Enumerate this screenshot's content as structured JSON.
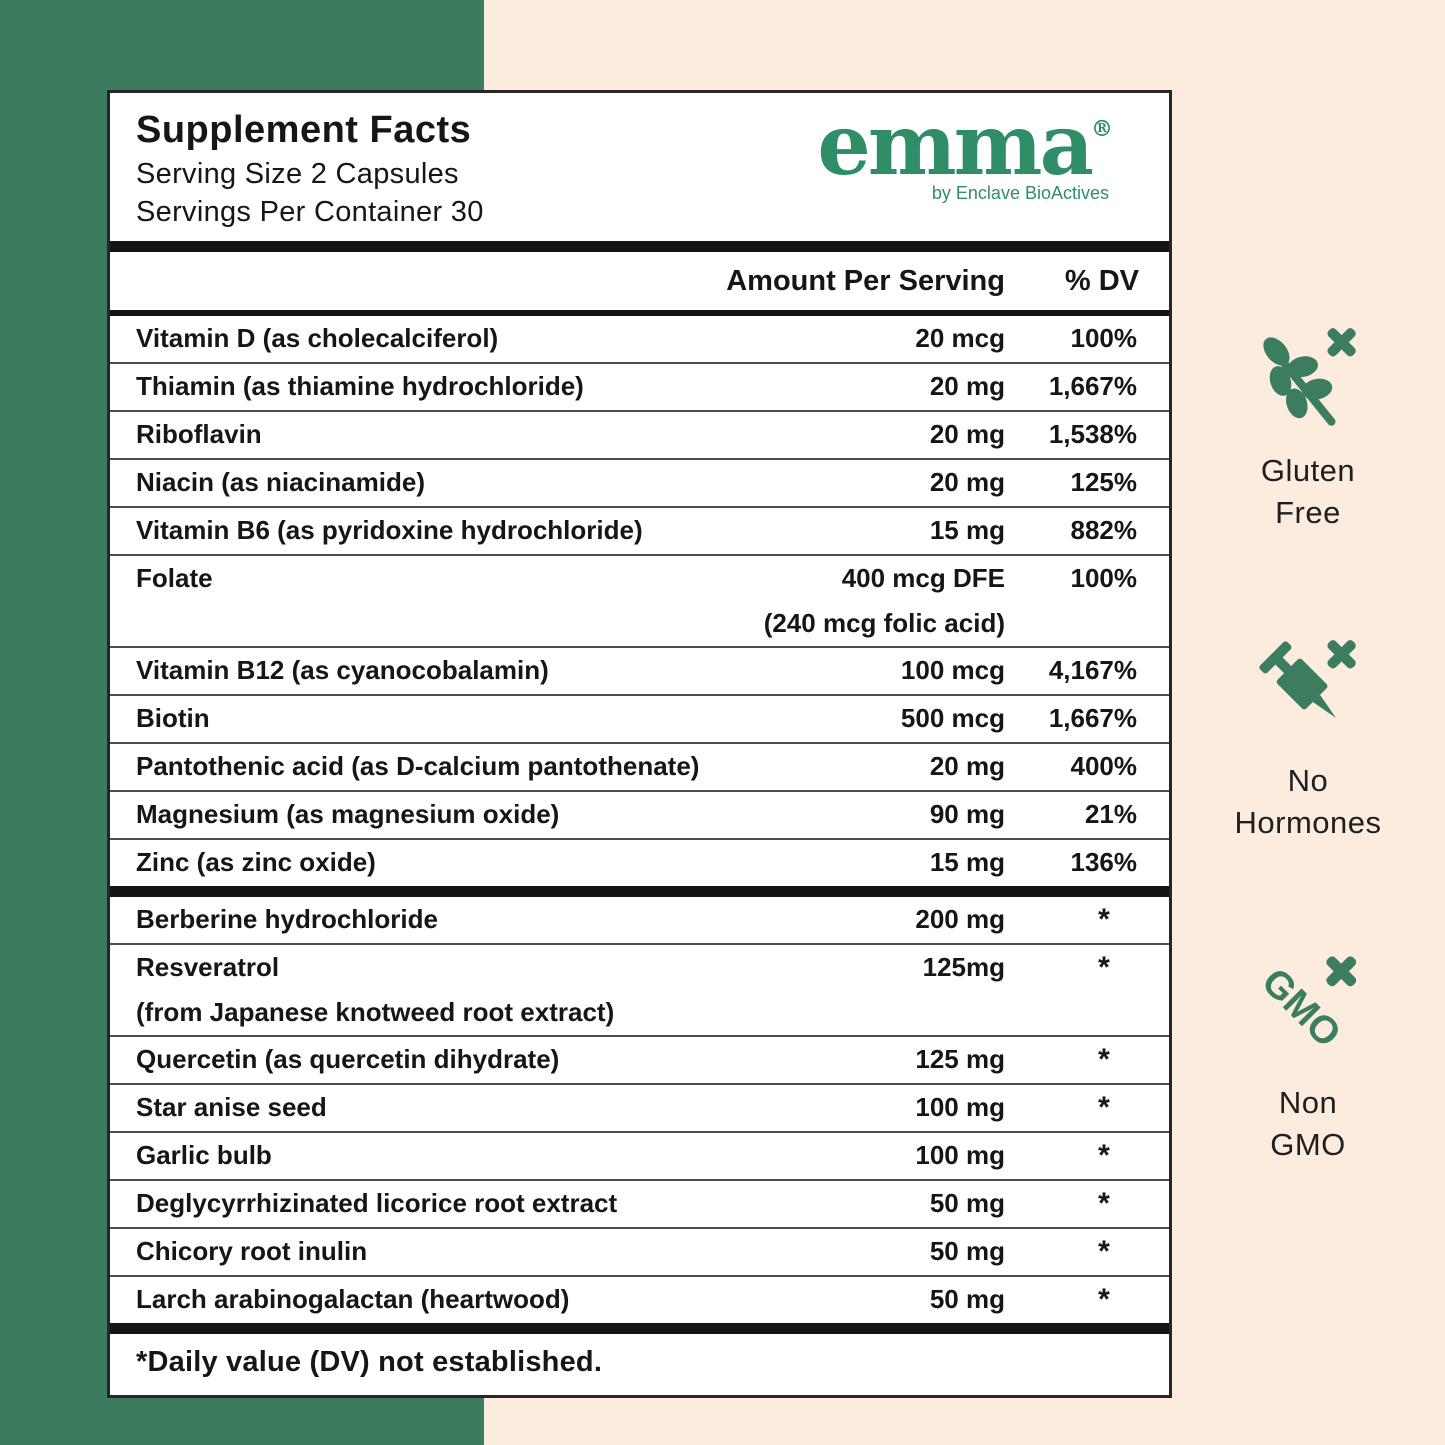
{
  "header": {
    "title": "Supplement Facts",
    "serving_size": "Serving Size 2 Capsules",
    "servings_per_container": "Servings Per Container 30"
  },
  "brand": {
    "word": "emma",
    "registered": "®",
    "tagline": "by Enclave BioActives"
  },
  "columns": {
    "amount": "Amount Per Serving",
    "dv": "% DV"
  },
  "nutrients": [
    {
      "name": "Vitamin D (as cholecalciferol)",
      "amount": "20 mcg",
      "dv": "100%"
    },
    {
      "name": "Thiamin (as thiamine hydrochloride)",
      "amount": "20 mg",
      "dv": "1,667%"
    },
    {
      "name": "Riboflavin",
      "amount": "20 mg",
      "dv": "1,538%"
    },
    {
      "name": "Niacin (as niacinamide)",
      "amount": "20 mg",
      "dv": "125%"
    },
    {
      "name": "Vitamin B6 (as pyridoxine hydrochloride)",
      "amount": "15 mg",
      "dv": "882%"
    },
    {
      "name": "Folate",
      "amount": "400 mcg DFE",
      "dv": "100%",
      "note": "(240 mcg folic acid)",
      "note_align": "right"
    },
    {
      "name": "Vitamin B12 (as cyanocobalamin)",
      "amount": "100 mcg",
      "dv": "4,167%"
    },
    {
      "name": "Biotin",
      "amount": "500 mcg",
      "dv": "1,667%"
    },
    {
      "name": "Pantothenic acid (as D-calcium pantothenate)",
      "amount": "20 mg",
      "dv": "400%"
    },
    {
      "name": "Magnesium (as magnesium oxide)",
      "amount": "90 mg",
      "dv": "21%"
    },
    {
      "name": "Zinc (as zinc oxide)",
      "amount": "15 mg",
      "dv": "136%"
    }
  ],
  "botanicals": [
    {
      "name": "Berberine hydrochloride",
      "amount": "200 mg",
      "dv": "*"
    },
    {
      "name": "Resveratrol",
      "amount": "125mg",
      "dv": "*",
      "note": "(from Japanese knotweed root extract)",
      "note_align": "left"
    },
    {
      "name": "Quercetin (as quercetin dihydrate)",
      "amount": "125 mg",
      "dv": "*"
    },
    {
      "name": "Star anise seed",
      "amount": "100 mg",
      "dv": "*"
    },
    {
      "name": "Garlic bulb",
      "amount": "100 mg",
      "dv": "*"
    },
    {
      "name": "Deglycyrrhizinated licorice root extract",
      "amount": "50 mg",
      "dv": "*"
    },
    {
      "name": "Chicory root inulin",
      "amount": "50 mg",
      "dv": "*"
    },
    {
      "name": "Larch arabinogalactan (heartwood)",
      "amount": "50 mg",
      "dv": "*"
    }
  ],
  "footnote": "*Daily value (DV) not established.",
  "badges": [
    {
      "id": "gluten-free",
      "lines": [
        "Gluten",
        "Free"
      ]
    },
    {
      "id": "no-hormones",
      "lines": [
        "No",
        "Hormones"
      ]
    },
    {
      "id": "non-gmo",
      "lines": [
        "Non",
        "GMO"
      ],
      "icon_text": "GMO"
    }
  ],
  "colors": {
    "band_green": "#3B7B5E",
    "cream": "#FBECDE",
    "logo_green": "#2F8D68",
    "icon_green": "#3C7D5F",
    "panel_border": "#262626",
    "separator": "#4d4d4d",
    "text": "#161616"
  }
}
